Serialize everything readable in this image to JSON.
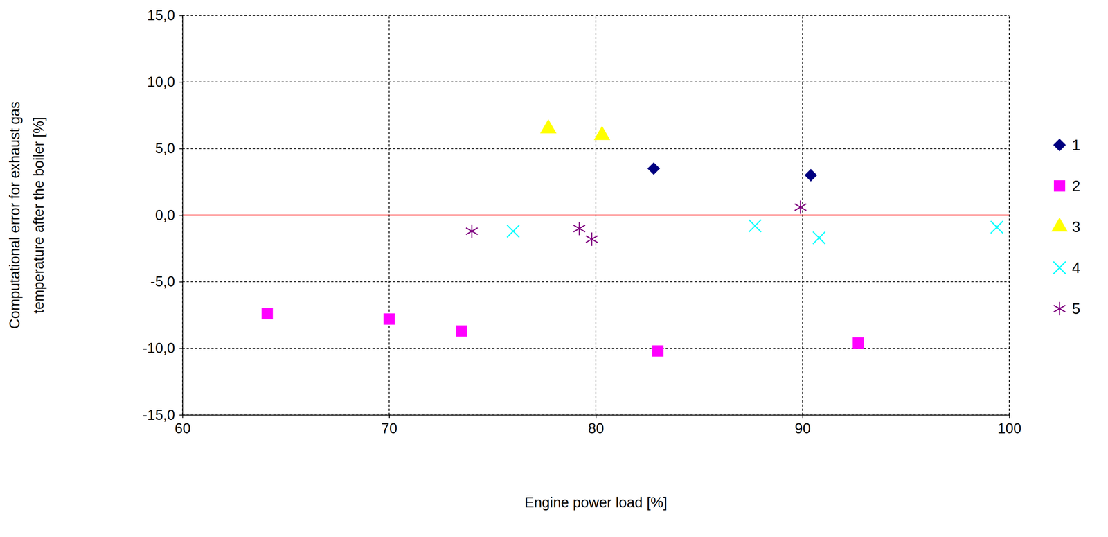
{
  "chart_data": {
    "type": "scatter",
    "x_label": "Engine power load [%]",
    "y_label": [
      "Computational  error for exhaust gas",
      "temperature after the boiler [%]"
    ],
    "xlim": [
      60,
      100
    ],
    "xticks": [
      60,
      70,
      80,
      90,
      100
    ],
    "ylim": [
      -15,
      15
    ],
    "yticks": [
      {
        "value": 15,
        "label": "15,0"
      },
      {
        "value": 10,
        "label": "10,0"
      },
      {
        "value": 5,
        "label": "5,0"
      },
      {
        "value": 0,
        "label": "0,0"
      },
      {
        "value": -5,
        "label": "-5,0"
      },
      {
        "value": -10,
        "label": "-10,0"
      },
      {
        "value": -15,
        "label": "-15,0"
      }
    ],
    "grid": true,
    "legend": "right",
    "series": [
      {
        "name": "1",
        "color": "#000080",
        "marker": "diamond",
        "x": [
          82.8,
          90.4
        ],
        "values": [
          3.5,
          3.0
        ]
      },
      {
        "name": "2",
        "color": "#ff00ff",
        "marker": "square",
        "x": [
          64.1,
          70.0,
          73.5,
          83.0,
          92.7
        ],
        "values": [
          -7.4,
          -7.8,
          -8.7,
          -10.2,
          -9.6
        ]
      },
      {
        "name": "3",
        "color": "#ffff00",
        "marker": "triangle",
        "x": [
          77.7,
          80.3
        ],
        "values": [
          6.5,
          6.0
        ]
      },
      {
        "name": "4",
        "color": "#00ffff",
        "marker": "x",
        "x": [
          76.0,
          87.7,
          90.8,
          99.4
        ],
        "values": [
          -1.2,
          -0.8,
          -1.7,
          -0.9
        ]
      },
      {
        "name": "5",
        "color": "#800080",
        "marker": "star",
        "x": [
          74.0,
          79.2,
          79.8,
          89.9
        ],
        "values": [
          -1.2,
          -1.0,
          -1.8,
          0.6
        ]
      }
    ]
  }
}
